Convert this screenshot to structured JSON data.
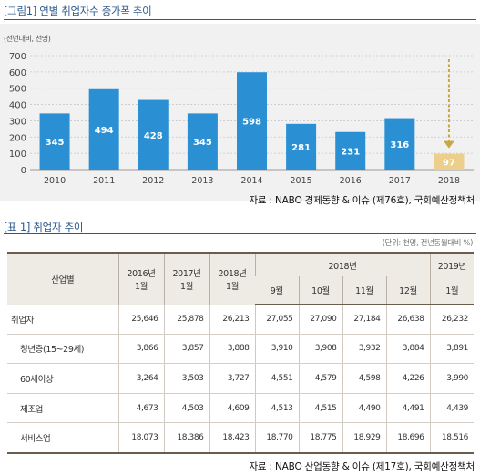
{
  "figure": {
    "title": "[그림1] 연별 취업자수 증가폭 추이",
    "unit_label": "(전년대비, 천명)",
    "source": "자료 : NABO 경제동향 & 이슈 (제76호), 국회예산정책처"
  },
  "chart_data": {
    "type": "bar",
    "title": "[그림1] 연별 취업자수 증가폭 추이",
    "ylabel": "(전년대비, 천명)",
    "xlabel": "",
    "categories": [
      "2010",
      "2011",
      "2012",
      "2013",
      "2014",
      "2015",
      "2016",
      "2017",
      "2018"
    ],
    "values": [
      345,
      494,
      428,
      345,
      598,
      281,
      231,
      316,
      97
    ],
    "ylim": [
      0,
      700
    ],
    "yticks": [
      0,
      100,
      200,
      300,
      400,
      500,
      600,
      700
    ],
    "grid": true,
    "colors": {
      "bar": "#2b8fd3",
      "highlight_bar": "#ebcf8a",
      "highlight_label": "#ffffff",
      "arrow": "#c9a646"
    },
    "highlight_index": 8,
    "annotation": "dashed-down-arrow-above-2018"
  },
  "table": {
    "title": "[표 1] 취업자 추이",
    "unit": "(단위: 천명, 전년동월대비 %)",
    "source": "자료 : NABO 산업동향 & 이슈 (제17호), 국회예산정책처",
    "header_top": [
      "산업별",
      "2016년\n1월",
      "2017년\n1월",
      "2018년\n1월",
      "2018년",
      "2019년"
    ],
    "header_sub": [
      "9월",
      "10월",
      "11월",
      "12월",
      "1월"
    ],
    "rows": [
      {
        "label": "취업자",
        "indent": false,
        "values": [
          "25,646",
          "25,878",
          "26,213",
          "27,055",
          "27,090",
          "27,184",
          "26,638",
          "26,232"
        ]
      },
      {
        "label": "청년층(15~29세)",
        "indent": true,
        "values": [
          "3,866",
          "3,857",
          "3,888",
          "3,910",
          "3,908",
          "3,932",
          "3,884",
          "3,891"
        ]
      },
      {
        "label": "60세이상",
        "indent": true,
        "values": [
          "3,264",
          "3,503",
          "3,727",
          "4,551",
          "4,579",
          "4,598",
          "4,226",
          "3,990"
        ]
      },
      {
        "label": "제조업",
        "indent": true,
        "values": [
          "4,673",
          "4,503",
          "4,609",
          "4,513",
          "4,515",
          "4,490",
          "4,491",
          "4,439"
        ]
      },
      {
        "label": "서비스업",
        "indent": true,
        "values": [
          "18,073",
          "18,386",
          "18,423",
          "18,770",
          "18,775",
          "18,929",
          "18,696",
          "18,516"
        ]
      }
    ]
  }
}
